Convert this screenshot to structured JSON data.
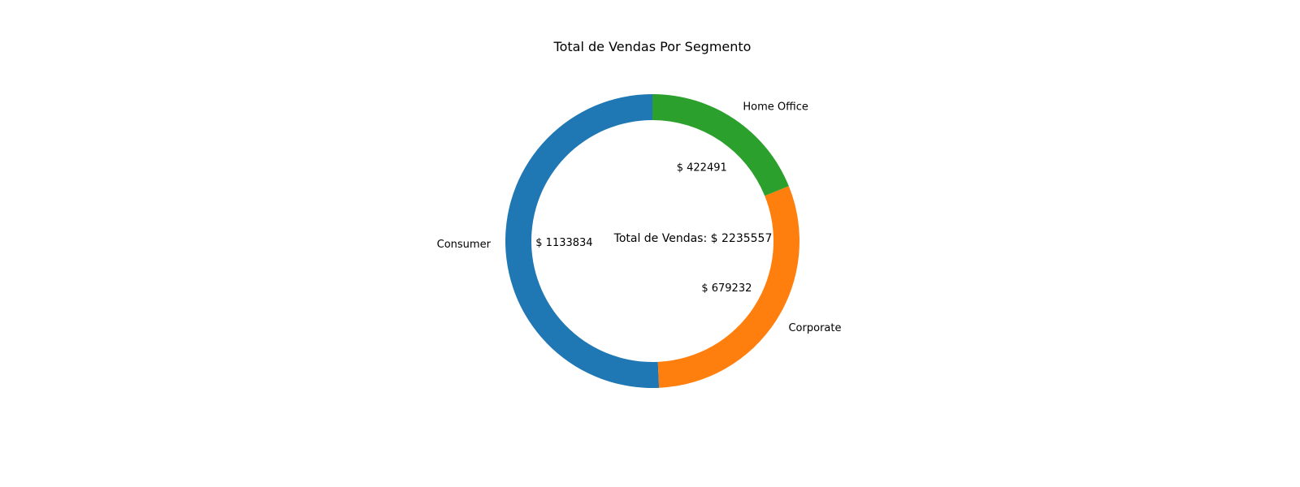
{
  "chart_data": {
    "type": "pie",
    "variant": "donut",
    "title": "Total de Vendas Por Segmento",
    "center_label": "Total de Vendas: $ 2235557",
    "start_angle_deg": 90,
    "direction": "counterclockwise",
    "slices": [
      {
        "label": "Consumer",
        "value": 1133834,
        "value_label": "$ 1133834",
        "color": "#1f77b4"
      },
      {
        "label": "Corporate",
        "value": 679232,
        "value_label": "$ 679232",
        "color": "#ff7f0e"
      },
      {
        "label": "Home Office",
        "value": 422491,
        "value_label": "$ 422491",
        "color": "#2ca02c"
      }
    ]
  }
}
